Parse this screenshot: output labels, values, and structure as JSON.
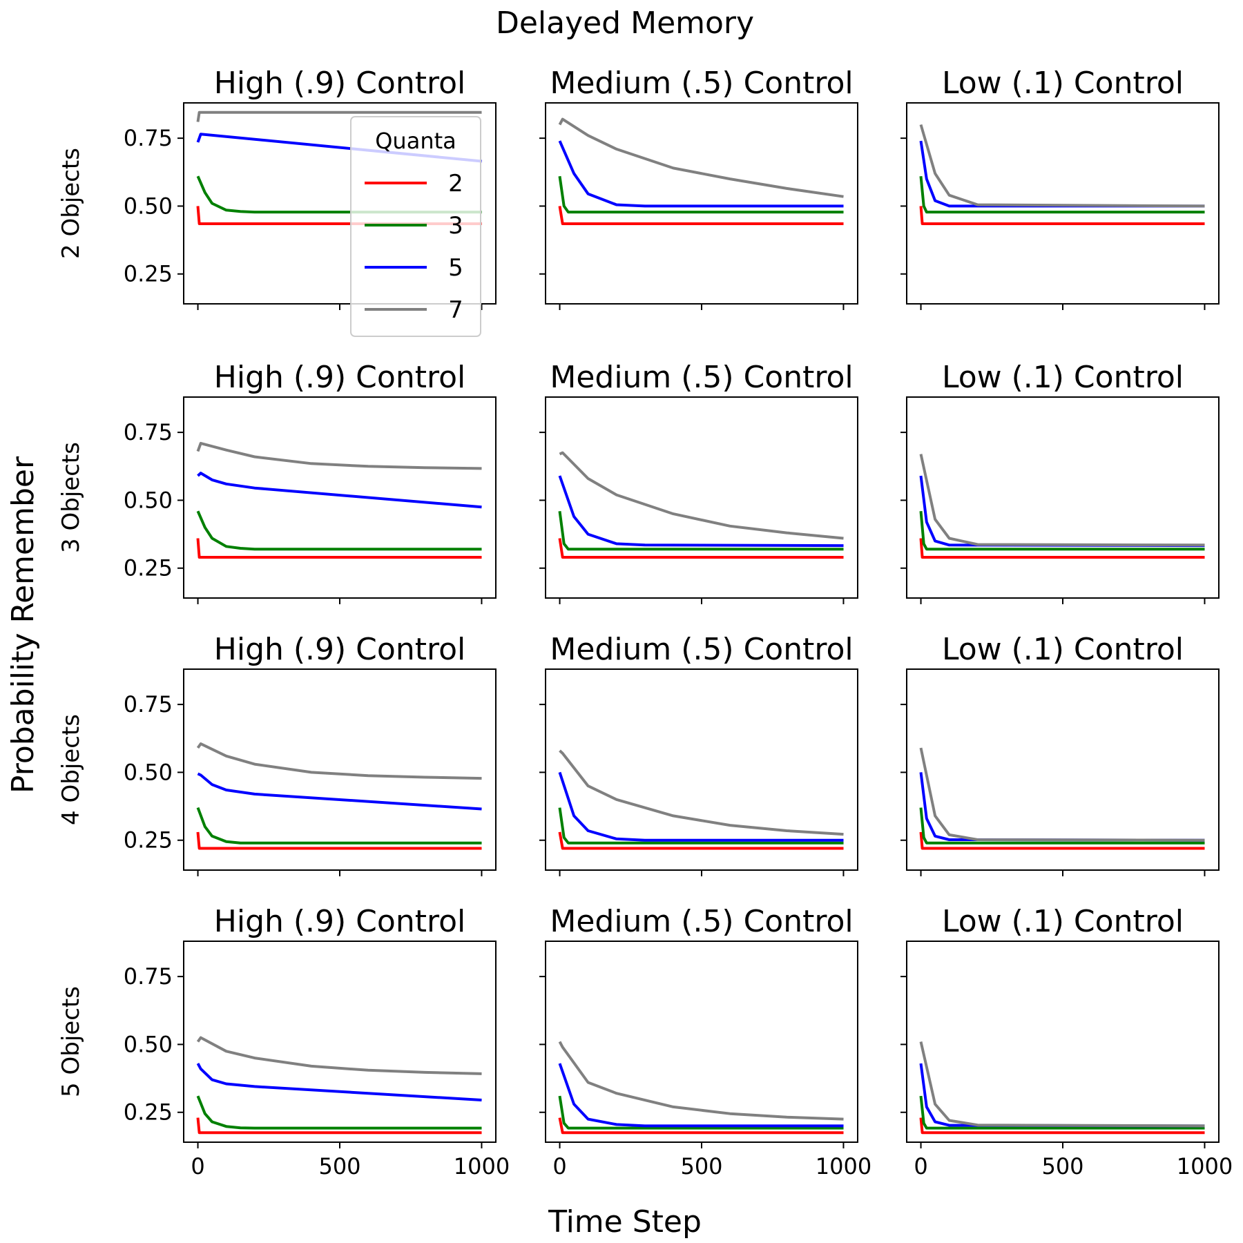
{
  "figure": {
    "suptitle": "Delayed Memory",
    "xlabel": "Time Step",
    "ylabel": "Probability Remember"
  },
  "legend": {
    "title": "Quanta",
    "placement": "upper-right of top-left panel"
  },
  "series_styles": [
    {
      "name": "2",
      "color": "#ff0000"
    },
    {
      "name": "3",
      "color": "#008000"
    },
    {
      "name": "5",
      "color": "#0000ff"
    },
    {
      "name": "7",
      "color": "#808080"
    }
  ],
  "column_titles": [
    "High (.9) Control",
    "Medium (.5) Control",
    "Low (.1) Control"
  ],
  "row_labels": [
    "2 Objects",
    "3 Objects",
    "4 Objects",
    "5 Objects"
  ],
  "axes": {
    "xlim": [
      -50,
      1050
    ],
    "ylim": [
      0.14,
      0.88
    ],
    "xticks": [
      0,
      500,
      1000
    ],
    "xtick_labels": [
      "0",
      "500",
      "1000"
    ],
    "yticks": [
      0.25,
      0.5,
      0.75
    ],
    "ytick_labels": [
      "0.25",
      "0.50",
      "0.75"
    ],
    "grid": false,
    "sharex": true,
    "sharey": true
  },
  "chart_data": {
    "type": "line",
    "layout": "4x3 small multiples",
    "x_domain": [
      0,
      1000
    ],
    "panels": [
      {
        "row": "2 Objects",
        "column": "High (.9) Control",
        "series": [
          {
            "name": "2",
            "x": [
              0,
              5,
              20,
              1000
            ],
            "y": [
              0.5,
              0.435,
              0.435,
              0.435
            ]
          },
          {
            "name": "3",
            "x": [
              0,
              25,
              50,
              100,
              150,
              200,
              1000
            ],
            "y": [
              0.61,
              0.55,
              0.51,
              0.485,
              0.48,
              0.478,
              0.478
            ]
          },
          {
            "name": "5",
            "x": [
              0,
              10,
              1000
            ],
            "y": [
              0.735,
              0.765,
              0.665
            ]
          },
          {
            "name": "7",
            "x": [
              0,
              5,
              1000
            ],
            "y": [
              0.81,
              0.845,
              0.845
            ]
          }
        ]
      },
      {
        "row": "2 Objects",
        "column": "Medium (.5) Control",
        "series": [
          {
            "name": "2",
            "x": [
              0,
              10,
              1000
            ],
            "y": [
              0.5,
              0.435,
              0.435
            ]
          },
          {
            "name": "3",
            "x": [
              0,
              15,
              30,
              1000
            ],
            "y": [
              0.61,
              0.5,
              0.478,
              0.478
            ]
          },
          {
            "name": "5",
            "x": [
              0,
              50,
              100,
              200,
              300,
              1000
            ],
            "y": [
              0.74,
              0.62,
              0.545,
              0.505,
              0.5,
              0.5
            ]
          },
          {
            "name": "7",
            "x": [
              0,
              10,
              100,
              200,
              400,
              600,
              800,
              1000
            ],
            "y": [
              0.8,
              0.82,
              0.76,
              0.71,
              0.64,
              0.6,
              0.565,
              0.535
            ]
          }
        ]
      },
      {
        "row": "2 Objects",
        "column": "Low (.1) Control",
        "series": [
          {
            "name": "2",
            "x": [
              0,
              5,
              1000
            ],
            "y": [
              0.5,
              0.435,
              0.435
            ]
          },
          {
            "name": "3",
            "x": [
              0,
              10,
              20,
              1000
            ],
            "y": [
              0.61,
              0.5,
              0.478,
              0.478
            ]
          },
          {
            "name": "5",
            "x": [
              0,
              20,
              50,
              100,
              1000
            ],
            "y": [
              0.74,
              0.6,
              0.52,
              0.5,
              0.5
            ]
          },
          {
            "name": "7",
            "x": [
              0,
              50,
              100,
              200,
              1000
            ],
            "y": [
              0.8,
              0.62,
              0.54,
              0.505,
              0.5
            ]
          }
        ]
      },
      {
        "row": "3 Objects",
        "column": "High (.9) Control",
        "series": [
          {
            "name": "2",
            "x": [
              0,
              5,
              1000
            ],
            "y": [
              0.36,
              0.29,
              0.29
            ]
          },
          {
            "name": "3",
            "x": [
              0,
              25,
              50,
              100,
              150,
              200,
              1000
            ],
            "y": [
              0.46,
              0.4,
              0.36,
              0.33,
              0.323,
              0.32,
              0.32
            ]
          },
          {
            "name": "5",
            "x": [
              0,
              10,
              50,
              100,
              200,
              1000
            ],
            "y": [
              0.59,
              0.6,
              0.575,
              0.56,
              0.545,
              0.475
            ]
          },
          {
            "name": "7",
            "x": [
              0,
              10,
              100,
              200,
              400,
              600,
              800,
              1000
            ],
            "y": [
              0.68,
              0.71,
              0.685,
              0.66,
              0.635,
              0.625,
              0.62,
              0.617
            ]
          }
        ]
      },
      {
        "row": "3 Objects",
        "column": "Medium (.5) Control",
        "series": [
          {
            "name": "2",
            "x": [
              0,
              10,
              1000
            ],
            "y": [
              0.36,
              0.29,
              0.29
            ]
          },
          {
            "name": "3",
            "x": [
              0,
              15,
              30,
              1000
            ],
            "y": [
              0.46,
              0.34,
              0.32,
              0.32
            ]
          },
          {
            "name": "5",
            "x": [
              0,
              50,
              100,
              200,
              300,
              1000
            ],
            "y": [
              0.59,
              0.44,
              0.375,
              0.34,
              0.335,
              0.333
            ]
          },
          {
            "name": "7",
            "x": [
              0,
              10,
              100,
              200,
              400,
              600,
              800,
              1000
            ],
            "y": [
              0.67,
              0.675,
              0.58,
              0.52,
              0.45,
              0.405,
              0.38,
              0.36
            ]
          }
        ]
      },
      {
        "row": "3 Objects",
        "column": "Low (.1) Control",
        "series": [
          {
            "name": "2",
            "x": [
              0,
              5,
              1000
            ],
            "y": [
              0.36,
              0.29,
              0.29
            ]
          },
          {
            "name": "3",
            "x": [
              0,
              10,
              20,
              1000
            ],
            "y": [
              0.46,
              0.34,
              0.32,
              0.32
            ]
          },
          {
            "name": "5",
            "x": [
              0,
              20,
              50,
              100,
              1000
            ],
            "y": [
              0.59,
              0.42,
              0.35,
              0.335,
              0.333
            ]
          },
          {
            "name": "7",
            "x": [
              0,
              50,
              100,
              200,
              1000
            ],
            "y": [
              0.67,
              0.43,
              0.36,
              0.337,
              0.335
            ]
          }
        ]
      },
      {
        "row": "4 Objects",
        "column": "High (.9) Control",
        "series": [
          {
            "name": "2",
            "x": [
              0,
              5,
              1000
            ],
            "y": [
              0.28,
              0.22,
              0.22
            ]
          },
          {
            "name": "3",
            "x": [
              0,
              25,
              50,
              100,
              150,
              200,
              1000
            ],
            "y": [
              0.37,
              0.3,
              0.265,
              0.245,
              0.24,
              0.24,
              0.24
            ]
          },
          {
            "name": "5",
            "x": [
              0,
              10,
              50,
              100,
              200,
              1000
            ],
            "y": [
              0.495,
              0.49,
              0.455,
              0.435,
              0.42,
              0.365
            ]
          },
          {
            "name": "7",
            "x": [
              0,
              10,
              100,
              200,
              400,
              600,
              800,
              1000
            ],
            "y": [
              0.59,
              0.605,
              0.56,
              0.53,
              0.5,
              0.488,
              0.482,
              0.478
            ]
          }
        ]
      },
      {
        "row": "4 Objects",
        "column": "Medium (.5) Control",
        "series": [
          {
            "name": "2",
            "x": [
              0,
              10,
              1000
            ],
            "y": [
              0.28,
              0.22,
              0.22
            ]
          },
          {
            "name": "3",
            "x": [
              0,
              15,
              30,
              1000
            ],
            "y": [
              0.37,
              0.26,
              0.24,
              0.24
            ]
          },
          {
            "name": "5",
            "x": [
              0,
              50,
              100,
              200,
              300,
              1000
            ],
            "y": [
              0.5,
              0.34,
              0.285,
              0.255,
              0.25,
              0.25
            ]
          },
          {
            "name": "7",
            "x": [
              0,
              10,
              100,
              200,
              400,
              600,
              800,
              1000
            ],
            "y": [
              0.58,
              0.57,
              0.45,
              0.4,
              0.34,
              0.305,
              0.285,
              0.272
            ]
          }
        ]
      },
      {
        "row": "4 Objects",
        "column": "Low (.1) Control",
        "series": [
          {
            "name": "2",
            "x": [
              0,
              5,
              1000
            ],
            "y": [
              0.28,
              0.22,
              0.22
            ]
          },
          {
            "name": "3",
            "x": [
              0,
              10,
              20,
              1000
            ],
            "y": [
              0.37,
              0.26,
              0.24,
              0.24
            ]
          },
          {
            "name": "5",
            "x": [
              0,
              20,
              50,
              100,
              1000
            ],
            "y": [
              0.5,
              0.33,
              0.265,
              0.252,
              0.25
            ]
          },
          {
            "name": "7",
            "x": [
              0,
              50,
              100,
              200,
              1000
            ],
            "y": [
              0.59,
              0.34,
              0.27,
              0.252,
              0.25
            ]
          }
        ]
      },
      {
        "row": "5 Objects",
        "column": "High (.9) Control",
        "series": [
          {
            "name": "2",
            "x": [
              0,
              5,
              1000
            ],
            "y": [
              0.23,
              0.175,
              0.175
            ]
          },
          {
            "name": "3",
            "x": [
              0,
              25,
              50,
              100,
              150,
              200,
              1000
            ],
            "y": [
              0.31,
              0.245,
              0.215,
              0.198,
              0.193,
              0.192,
              0.192
            ]
          },
          {
            "name": "5",
            "x": [
              0,
              10,
              50,
              100,
              200,
              1000
            ],
            "y": [
              0.43,
              0.41,
              0.37,
              0.355,
              0.345,
              0.295
            ]
          },
          {
            "name": "7",
            "x": [
              0,
              10,
              100,
              200,
              400,
              600,
              800,
              1000
            ],
            "y": [
              0.51,
              0.525,
              0.475,
              0.45,
              0.42,
              0.405,
              0.397,
              0.392
            ]
          }
        ]
      },
      {
        "row": "5 Objects",
        "column": "Medium (.5) Control",
        "series": [
          {
            "name": "2",
            "x": [
              0,
              10,
              1000
            ],
            "y": [
              0.23,
              0.175,
              0.175
            ]
          },
          {
            "name": "3",
            "x": [
              0,
              15,
              30,
              1000
            ],
            "y": [
              0.31,
              0.21,
              0.192,
              0.192
            ]
          },
          {
            "name": "5",
            "x": [
              0,
              50,
              100,
              200,
              300,
              1000
            ],
            "y": [
              0.43,
              0.28,
              0.225,
              0.205,
              0.2,
              0.2
            ]
          },
          {
            "name": "7",
            "x": [
              0,
              10,
              100,
              200,
              400,
              600,
              800,
              1000
            ],
            "y": [
              0.51,
              0.49,
              0.36,
              0.32,
              0.27,
              0.245,
              0.232,
              0.225
            ]
          }
        ]
      },
      {
        "row": "5 Objects",
        "column": "Low (.1) Control",
        "series": [
          {
            "name": "2",
            "x": [
              0,
              5,
              1000
            ],
            "y": [
              0.23,
              0.175,
              0.175
            ]
          },
          {
            "name": "3",
            "x": [
              0,
              10,
              20,
              1000
            ],
            "y": [
              0.31,
              0.21,
              0.192,
              0.192
            ]
          },
          {
            "name": "5",
            "x": [
              0,
              20,
              50,
              100,
              1000
            ],
            "y": [
              0.43,
              0.27,
              0.215,
              0.202,
              0.2
            ]
          },
          {
            "name": "7",
            "x": [
              0,
              50,
              100,
              200,
              1000
            ],
            "y": [
              0.51,
              0.28,
              0.22,
              0.203,
              0.2
            ]
          }
        ]
      }
    ]
  }
}
